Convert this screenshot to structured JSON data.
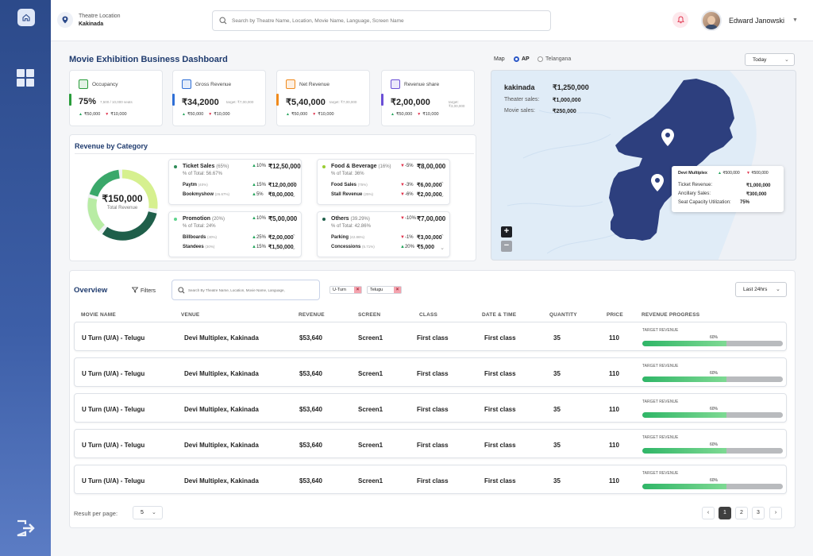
{
  "header": {
    "location_label": "Theatre Location",
    "location_value": "Kakinada",
    "search_placeholder": "Search by Theatre Name, Location, Movie Name, Language, Screen Name",
    "user_name": "Edward Janowski"
  },
  "dashboard": {
    "title": "Movie Exhibition Business Dashboard"
  },
  "kpis": [
    {
      "label": "Occupancy",
      "value": "75%",
      "target": "7,500 / 10,000 seats",
      "up": "₹50,000",
      "down": "₹10,000",
      "accent": "#2a9d3b",
      "icon": "occupancy-icon"
    },
    {
      "label": "Gross Revenue",
      "value": "₹34,2000",
      "target": "target: ₹7,00,000",
      "up": "₹50,000",
      "down": "₹10,000",
      "accent": "#2f6fd6",
      "icon": "gross-revenue-icon"
    },
    {
      "label": "Net Revenue",
      "value": "₹5,40,000",
      "target": "target: ₹7,00,000",
      "up": "₹50,000",
      "down": "₹10,000",
      "accent": "#f08a1c",
      "icon": "net-revenue-icon"
    },
    {
      "label": "Revenue share",
      "value": "₹2,00,000",
      "target": "target: ₹3,00,000",
      "up": "₹50,000",
      "down": "₹10,000",
      "accent": "#6b4fd6",
      "icon": "revenue-share-icon"
    }
  ],
  "revenue_by_category": {
    "title": "Revenue by Category",
    "total_value": "₹150,000",
    "total_label": "Total Revenue",
    "categories": [
      {
        "name": "Ticket Sales",
        "pct": "(65%)",
        "change": "10%",
        "dir": "up",
        "amount": "₹12,50,000",
        "sub": "% of Total: 56.67%",
        "dot": "#2e8b57",
        "rows": [
          {
            "name": "Paytm",
            "pct": "(40%)",
            "change": "15%",
            "dir": "up",
            "amount": "₹12,00,000"
          },
          {
            "name": "Bookmyshow",
            "pct": "(26.67%)",
            "change": "5%",
            "dir": "up",
            "amount": "₹8,00,000"
          }
        ]
      },
      {
        "name": "Food & Beverage",
        "pct": "(16%)",
        "change": "-5%",
        "dir": "down",
        "amount": "₹8,00,000",
        "sub": "% of Total: 36%",
        "dot": "#9acd32",
        "rows": [
          {
            "name": "Food Sales",
            "pct": "(75%)",
            "change": "-3%",
            "dir": "down",
            "amount": "₹6,00,000"
          },
          {
            "name": "Stall Revenue",
            "pct": "(25%)",
            "change": "-6%",
            "dir": "down",
            "amount": "₹2,00,000"
          }
        ]
      },
      {
        "name": "Promotion",
        "pct": "(20%)",
        "change": "10%",
        "dir": "up",
        "amount": "₹5,00,000",
        "sub": "% of Total: 24%",
        "dot": "#5fd38d",
        "rows": [
          {
            "name": "Billboards",
            "pct": "(40%)",
            "change": "25%",
            "dir": "up",
            "amount": "₹2,00,000"
          },
          {
            "name": "Standees",
            "pct": "(30%)",
            "change": "15%",
            "dir": "up",
            "amount": "₹1,50,000"
          }
        ]
      },
      {
        "name": "Others",
        "pct": "(39.29%)",
        "change": "-10%",
        "dir": "down",
        "amount": "₹7,00,000",
        "sub": "% of Total: 42.86%",
        "dot": "#1f5f4a",
        "rows": [
          {
            "name": "Parking",
            "pct": "(42.86%)",
            "change": "-1%",
            "dir": "down",
            "amount": "₹3,00,000"
          },
          {
            "name": "Concessions",
            "pct": "(5.71%)",
            "change": "20%",
            "dir": "up",
            "amount": "₹5,000"
          }
        ]
      }
    ]
  },
  "map": {
    "label": "Map",
    "options": [
      "AP",
      "Telangana"
    ],
    "selected": "AP",
    "period": "Today",
    "city": "kakinada",
    "city_total": "₹1,250,000",
    "theater_sales_label": "Theater sales:",
    "theater_sales_value": "₹1,000,000",
    "movie_sales_label": "Movie sales:",
    "movie_sales_value": "₹250,000",
    "zoom_in": "+",
    "zoom_out": "−",
    "tooltip": {
      "name": "Devi Multiplex",
      "up": "₹500,000",
      "down": "₹500,000",
      "ticket_label": "Ticket Revenue:",
      "ticket_value": "₹1,000,000",
      "ancillary_label": "Ancillary Sales:",
      "ancillary_value": "₹300,000",
      "capacity_label": "Seat Capacity Utilization:",
      "capacity_value": "75%"
    }
  },
  "overview": {
    "title": "Overview",
    "filters_label": "Filters",
    "search_placeholder": "Search By Theatre Name, Location, Movie Name, Language,",
    "chips": [
      "U-Turn",
      "Telugu"
    ],
    "period": "Last 24hrs",
    "columns": [
      "MOVIE NAME",
      "VENUE",
      "REVENUE",
      "SCREEN",
      "CLASS",
      "DATE & TIME",
      "QUANTITY",
      "PRICE",
      "REVENUE PROGRESS"
    ],
    "rows": [
      {
        "movie": "U Turn (U/A) - Telugu",
        "venue": "Devi Multiplex, Kakinada",
        "revenue": "$53,640",
        "screen": "Screen1",
        "class": "First class",
        "datetime": "First class",
        "quantity": "35",
        "price": "110",
        "progress_label": "TARGET REVENUE",
        "progress_pct": "60%",
        "progress": 0.6
      },
      {
        "movie": "U Turn (U/A) - Telugu",
        "venue": "Devi Multiplex, Kakinada",
        "revenue": "$53,640",
        "screen": "Screen1",
        "class": "First class",
        "datetime": "First class",
        "quantity": "35",
        "price": "110",
        "progress_label": "TARGET REVENUE",
        "progress_pct": "60%",
        "progress": 0.6
      },
      {
        "movie": "U Turn (U/A) - Telugu",
        "venue": "Devi Multiplex, Kakinada",
        "revenue": "$53,640",
        "screen": "Screen1",
        "class": "First class",
        "datetime": "First class",
        "quantity": "35",
        "price": "110",
        "progress_label": "TARGET REVENUE",
        "progress_pct": "60%",
        "progress": 0.6
      },
      {
        "movie": "U Turn (U/A) - Telugu",
        "venue": "Devi Multiplex, Kakinada",
        "revenue": "$53,640",
        "screen": "Screen1",
        "class": "First class",
        "datetime": "First class",
        "quantity": "35",
        "price": "110",
        "progress_label": "TARGET REVENUE",
        "progress_pct": "60%",
        "progress": 0.6
      },
      {
        "movie": "U Turn (U/A) - Telugu",
        "venue": "Devi Multiplex, Kakinada",
        "revenue": "$53,640",
        "screen": "Screen1",
        "class": "First class",
        "datetime": "First class",
        "quantity": "35",
        "price": "110",
        "progress_label": "TARGET REVENUE",
        "progress_pct": "60%",
        "progress": 0.6
      }
    ],
    "rows_per_page_label": "Result per page:",
    "rows_per_page": "5",
    "pages": [
      "1",
      "2",
      "3"
    ],
    "current_page": "1"
  },
  "colors": {
    "sidebar": "#2c4a8a",
    "accent": "#1f3b6e",
    "map_state": "#2d3f7e",
    "progress": "#2fb667"
  }
}
